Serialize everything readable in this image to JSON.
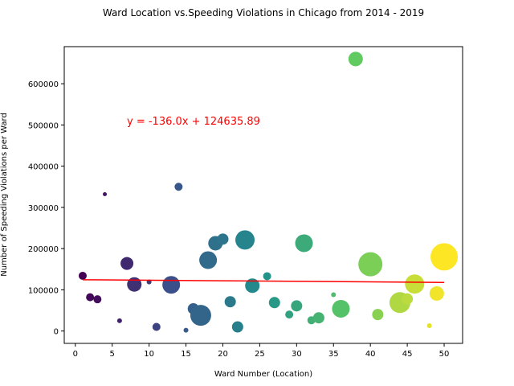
{
  "chart_data": {
    "type": "scatter",
    "title": "Ward Location vs.Speeding Violations in Chicago from 2014 - 2019",
    "xlabel": "Ward Number (Location)",
    "ylabel": "Number of Speeding Violations per Ward",
    "xlim": [
      -1.5,
      52.5
    ],
    "ylim": [
      -30000,
      690000
    ],
    "xticks": [
      0,
      5,
      10,
      15,
      20,
      25,
      30,
      35,
      40,
      45,
      50
    ],
    "yticks": [
      0,
      100000,
      200000,
      300000,
      400000,
      500000,
      600000
    ],
    "grid": false,
    "colormap": "viridis",
    "regression": {
      "slope": -136.0,
      "intercept": 124635.89,
      "x_range": [
        1,
        50
      ],
      "color": "#ff0000",
      "label": "y = -136.0x + 124635.89"
    },
    "points": [
      {
        "x": 1,
        "y": 134000,
        "size": 5
      },
      {
        "x": 2,
        "y": 82000,
        "size": 5
      },
      {
        "x": 3,
        "y": 77000,
        "size": 5
      },
      {
        "x": 4,
        "y": 332000,
        "size": 2.5
      },
      {
        "x": 6,
        "y": 25000,
        "size": 3
      },
      {
        "x": 7,
        "y": 164000,
        "size": 8
      },
      {
        "x": 8,
        "y": 113000,
        "size": 9
      },
      {
        "x": 10,
        "y": 119000,
        "size": 3
      },
      {
        "x": 11,
        "y": 10000,
        "size": 5
      },
      {
        "x": 13,
        "y": 112000,
        "size": 11
      },
      {
        "x": 14,
        "y": 350000,
        "size": 5
      },
      {
        "x": 15,
        "y": 2000,
        "size": 3
      },
      {
        "x": 16,
        "y": 54000,
        "size": 7
      },
      {
        "x": 17,
        "y": 38000,
        "size": 13
      },
      {
        "x": 18,
        "y": 172000,
        "size": 11
      },
      {
        "x": 19,
        "y": 213000,
        "size": 9
      },
      {
        "x": 20,
        "y": 223000,
        "size": 7
      },
      {
        "x": 21,
        "y": 71000,
        "size": 7
      },
      {
        "x": 22,
        "y": 10000,
        "size": 7
      },
      {
        "x": 23,
        "y": 221000,
        "size": 12
      },
      {
        "x": 24,
        "y": 110000,
        "size": 9
      },
      {
        "x": 26,
        "y": 133000,
        "size": 5
      },
      {
        "x": 27,
        "y": 69000,
        "size": 7
      },
      {
        "x": 29,
        "y": 40000,
        "size": 5
      },
      {
        "x": 30,
        "y": 61000,
        "size": 7
      },
      {
        "x": 31,
        "y": 213000,
        "size": 11
      },
      {
        "x": 32,
        "y": 26000,
        "size": 5
      },
      {
        "x": 33,
        "y": 32000,
        "size": 7
      },
      {
        "x": 35,
        "y": 88000,
        "size": 3
      },
      {
        "x": 36,
        "y": 54000,
        "size": 11
      },
      {
        "x": 38,
        "y": 660000,
        "size": 9
      },
      {
        "x": 40,
        "y": 162000,
        "size": 15
      },
      {
        "x": 41,
        "y": 40000,
        "size": 7
      },
      {
        "x": 44,
        "y": 69000,
        "size": 13
      },
      {
        "x": 45,
        "y": 78000,
        "size": 7
      },
      {
        "x": 46,
        "y": 114000,
        "size": 12
      },
      {
        "x": 48,
        "y": 13000,
        "size": 3
      },
      {
        "x": 49,
        "y": 91000,
        "size": 9
      },
      {
        "x": 50,
        "y": 180000,
        "size": 17
      }
    ]
  }
}
